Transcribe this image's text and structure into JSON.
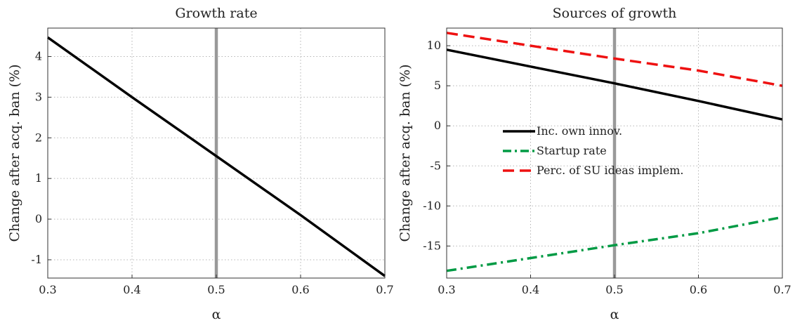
{
  "chart_data": [
    {
      "type": "line",
      "title": "Growth rate",
      "xlabel": "α",
      "ylabel": "Change after acq. ban (%)",
      "xlim": [
        0.3,
        0.7
      ],
      "ylim": [
        -1.45,
        4.7
      ],
      "xticks": [
        0.3,
        0.4,
        0.5,
        0.6,
        0.7
      ],
      "xtick_labels": [
        "0.3",
        "0.4",
        "0.5",
        "0.6",
        "0.7"
      ],
      "yticks": [
        -1,
        0,
        1,
        2,
        3,
        4
      ],
      "ytick_labels": [
        "-1",
        "0",
        "1",
        "2",
        "3",
        "4"
      ],
      "grid": true,
      "vline": {
        "x": 0.5,
        "color": "#999999"
      },
      "series": [
        {
          "x": [
            0.3,
            0.4,
            0.5,
            0.6,
            0.7
          ],
          "values": [
            4.47,
            3.0,
            1.55,
            0.1,
            -1.4
          ],
          "color": "#000000",
          "style": "solid"
        }
      ]
    },
    {
      "type": "line",
      "title": "Sources of growth",
      "xlabel": "α",
      "ylabel": "Change after acq. ban (%)",
      "xlim": [
        0.3,
        0.7
      ],
      "ylim": [
        -19,
        12.2
      ],
      "xticks": [
        0.3,
        0.4,
        0.5,
        0.6,
        0.7
      ],
      "xtick_labels": [
        "0.3",
        "0.4",
        "0.5",
        "0.6",
        "0.7"
      ],
      "yticks": [
        -15,
        -10,
        -5,
        0,
        5,
        10
      ],
      "ytick_labels": [
        "-15",
        "-10",
        "-5",
        "0",
        "5",
        "10"
      ],
      "grid": true,
      "legend_placement": "center",
      "vline": {
        "x": 0.5,
        "color": "#999999"
      },
      "series": [
        {
          "name": "Inc. own innov.",
          "x": [
            0.3,
            0.4,
            0.5,
            0.6,
            0.7
          ],
          "values": [
            9.5,
            7.4,
            5.3,
            3.1,
            0.8
          ],
          "color": "#000000",
          "style": "solid"
        },
        {
          "name": "Startup rate",
          "x": [
            0.3,
            0.4,
            0.5,
            0.6,
            0.7
          ],
          "values": [
            -18.1,
            -16.5,
            -14.9,
            -13.4,
            -11.4
          ],
          "color": "#009a44",
          "style": "dashdot"
        },
        {
          "name": "Perc. of SU ideas implem.",
          "x": [
            0.3,
            0.4,
            0.5,
            0.6,
            0.7
          ],
          "values": [
            11.6,
            10.0,
            8.4,
            6.9,
            5.0
          ],
          "color": "#ee1111",
          "style": "dashed"
        }
      ]
    }
  ]
}
